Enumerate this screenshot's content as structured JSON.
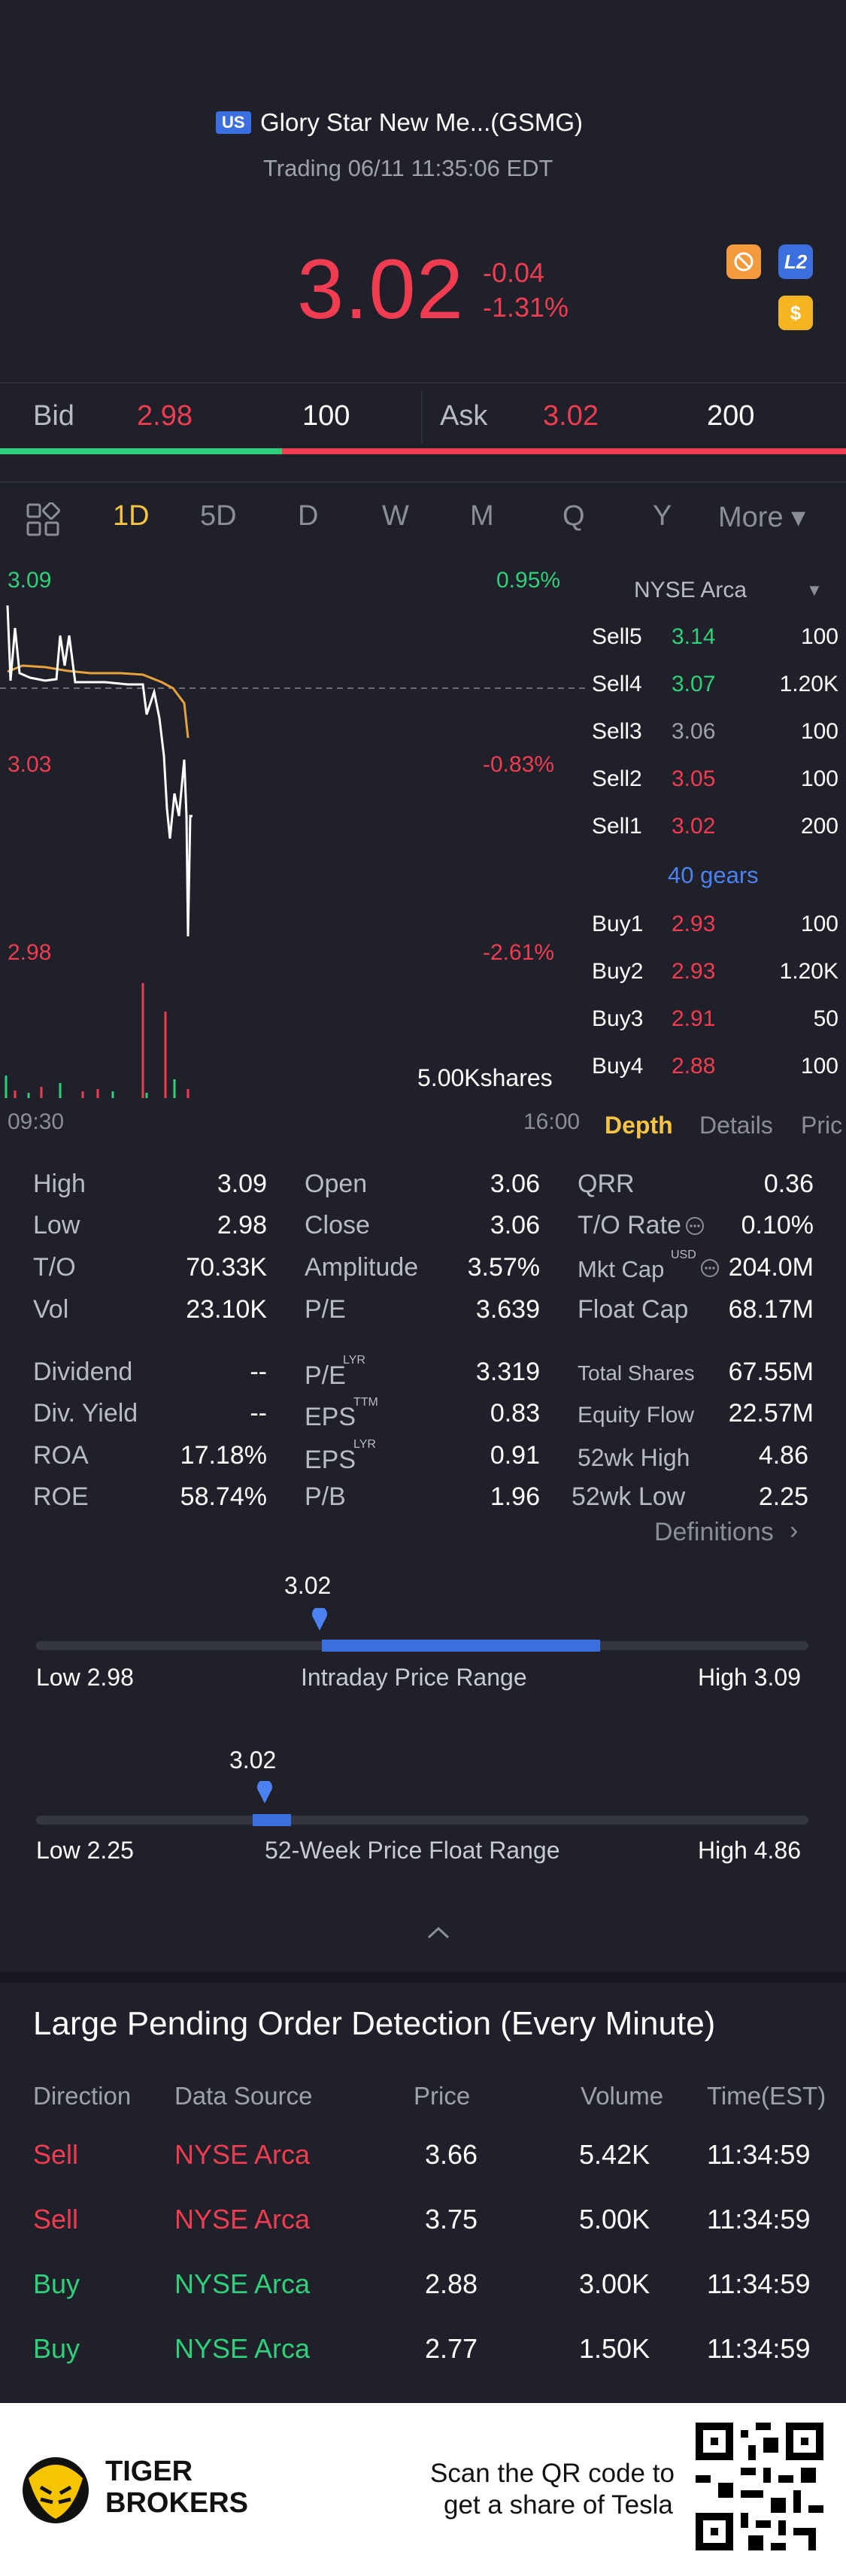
{
  "header": {
    "market_badge": "US",
    "title": "Glory Star New Me...(GSMG)",
    "status": "Trading 06/11 11:35:06 EDT",
    "price": "3.02",
    "change": "-0.04",
    "change_pct": "-1.31%",
    "l2_label": "L2",
    "dollar_label": "$"
  },
  "bidask": {
    "bid_label": "Bid",
    "bid_price": "2.98",
    "bid_size": "100",
    "ask_label": "Ask",
    "ask_price": "3.02",
    "ask_size": "200",
    "bid_ratio": 0.333
  },
  "tabs": [
    "1D",
    "5D",
    "D",
    "W",
    "M",
    "Q",
    "Y"
  ],
  "tabs_more": "More ▾",
  "chart": {
    "top_price": "3.09",
    "top_pct": "0.95%",
    "mid_price": "3.03",
    "mid_pct": "-0.83%",
    "low_price": "2.98",
    "low_pct": "-2.61%",
    "volume_label": "5.00Kshares",
    "time_start": "09:30",
    "time_end": "16:00"
  },
  "depth": {
    "exchange": "NYSE Arca",
    "sells": [
      {
        "label": "Sell5",
        "price": "3.14",
        "size": "100",
        "color": "#2fd07a"
      },
      {
        "label": "Sell4",
        "price": "3.07",
        "size": "1.20K",
        "color": "#2fd07a"
      },
      {
        "label": "Sell3",
        "price": "3.06",
        "size": "100",
        "color": "#9ea0ad"
      },
      {
        "label": "Sell2",
        "price": "3.05",
        "size": "100",
        "color": "#f03c50"
      },
      {
        "label": "Sell1",
        "price": "3.02",
        "size": "200",
        "color": "#f03c50"
      }
    ],
    "gears": "40 gears",
    "buys": [
      {
        "label": "Buy1",
        "price": "2.93",
        "size": "100",
        "color": "#f03c50"
      },
      {
        "label": "Buy2",
        "price": "2.93",
        "size": "1.20K",
        "color": "#f03c50"
      },
      {
        "label": "Buy3",
        "price": "2.91",
        "size": "50",
        "color": "#f03c50"
      },
      {
        "label": "Buy4",
        "price": "2.88",
        "size": "100",
        "color": "#f03c50"
      }
    ],
    "tabs": [
      "Depth",
      "Details",
      "Pric"
    ]
  },
  "stats": {
    "high_l": "High",
    "high_v": "3.09",
    "low_l": "Low",
    "low_v": "2.98",
    "to_l": "T/O",
    "to_v": "70.33K",
    "vol_l": "Vol",
    "vol_v": "23.10K",
    "open_l": "Open",
    "open_v": "3.06",
    "close_l": "Close",
    "close_v": "3.06",
    "amp_l": "Amplitude",
    "amp_v": "3.57%",
    "pe_l": "P/E",
    "pe_v": "3.639",
    "qrr_l": "QRR",
    "qrr_v": "0.36",
    "torate_l": "T/O Rate",
    "torate_v": "0.10%",
    "mktcap_l": "Mkt Cap",
    "mktcap_sup": "USD",
    "mktcap_v": "204.0M",
    "floatcap_l": "Float Cap",
    "floatcap_v": "68.17M",
    "div_l": "Dividend",
    "div_v": "--",
    "divy_l": "Div. Yield",
    "divy_v": "--",
    "roa_l": "ROA",
    "roa_v": "17.18%",
    "roe_l": "ROE",
    "roe_v": "58.74%",
    "pelyr_l": "P/E",
    "pelyr_sup": "LYR",
    "pelyr_v": "3.319",
    "epsttm_l": "EPS",
    "epsttm_sup": "TTM",
    "epsttm_v": "0.83",
    "epslyr_l": "EPS",
    "epslyr_sup": "LYR",
    "epslyr_v": "0.91",
    "pb_l": "P/B",
    "pb_v": "1.96",
    "tshares_l": "Total Shares",
    "tshares_v": "67.55M",
    "eqflow_l": "Equity Flow",
    "eqflow_v": "22.57M",
    "wkhigh_l": "52wk High",
    "wkhigh_v": "4.86",
    "wklow_l": "52wk Low",
    "wklow_v": "2.25",
    "definitions": "Definitions"
  },
  "intraday_range": {
    "current": "3.02",
    "low": "Low 2.98",
    "title": "Intraday Price Range",
    "high": "High 3.09",
    "fill_start": 0.37,
    "fill_end": 0.73
  },
  "week52_range": {
    "current": "3.02",
    "low": "Low 2.25",
    "title": "52-Week Price Float Range",
    "high": "High 4.86",
    "fill_start": 0.28,
    "fill_end": 0.33
  },
  "pending": {
    "title": "Large Pending Order Detection (Every Minute)",
    "headers": [
      "Direction",
      "Data Source",
      "Price",
      "Volume",
      "Time(EST)"
    ],
    "rows": [
      {
        "dir": "Sell",
        "src": "NYSE Arca",
        "price": "3.66",
        "vol": "5.42K",
        "time": "11:34:59",
        "color": "#f03c50"
      },
      {
        "dir": "Sell",
        "src": "NYSE Arca",
        "price": "3.75",
        "vol": "5.00K",
        "time": "11:34:59",
        "color": "#f03c50"
      },
      {
        "dir": "Buy",
        "src": "NYSE Arca",
        "price": "2.88",
        "vol": "3.00K",
        "time": "11:34:59",
        "color": "#2fd07a"
      },
      {
        "dir": "Buy",
        "src": "NYSE Arca",
        "price": "2.77",
        "vol": "1.50K",
        "time": "11:34:59",
        "color": "#2fd07a"
      }
    ]
  },
  "footer": {
    "brand_line1": "TIGER",
    "brand_line2": "BROKERS",
    "cta_line1": "Scan the QR code to",
    "cta_line2": "get a share of Tesla"
  }
}
